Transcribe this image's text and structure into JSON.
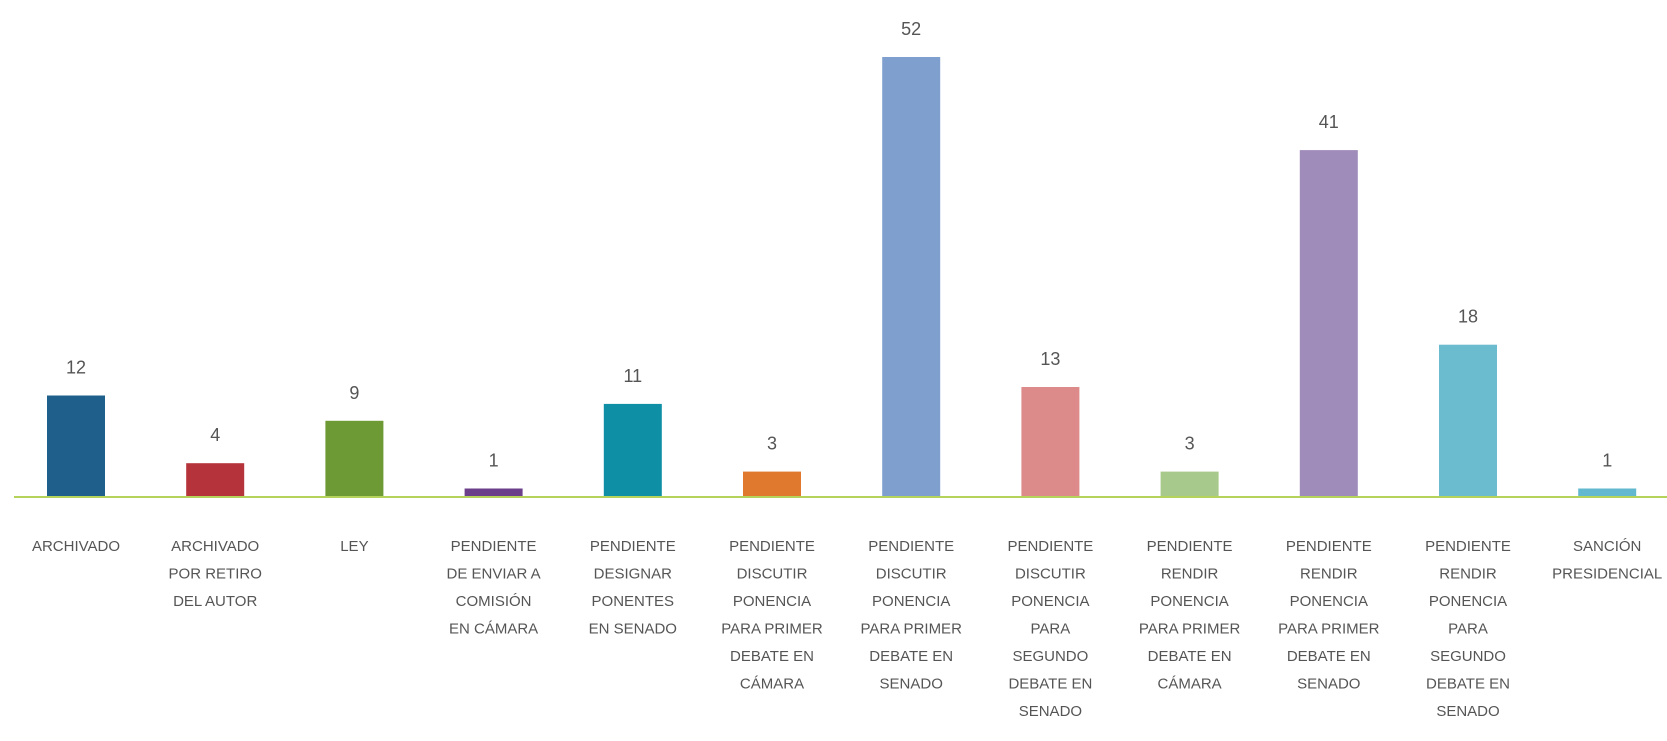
{
  "chart_data": {
    "type": "bar",
    "categories": [
      [
        "ARCHIVADO"
      ],
      [
        "ARCHIVADO",
        "POR RETIRO",
        "DEL AUTOR"
      ],
      [
        "LEY"
      ],
      [
        "PENDIENTE",
        "DE ENVIAR A",
        "COMISIÓN",
        "EN CÁMARA"
      ],
      [
        "PENDIENTE",
        "DESIGNAR",
        "PONENTES",
        "EN SENADO"
      ],
      [
        "PENDIENTE",
        "DISCUTIR",
        "PONENCIA",
        "PARA PRIMER",
        "DEBATE EN",
        "CÁMARA"
      ],
      [
        "PENDIENTE",
        "DISCUTIR",
        "PONENCIA",
        "PARA PRIMER",
        "DEBATE EN",
        "SENADO"
      ],
      [
        "PENDIENTE",
        "DISCUTIR",
        "PONENCIA",
        "PARA",
        "SEGUNDO",
        "DEBATE EN",
        "SENADO"
      ],
      [
        "PENDIENTE",
        "RENDIR",
        "PONENCIA",
        "PARA PRIMER",
        "DEBATE EN",
        "CÁMARA"
      ],
      [
        "PENDIENTE",
        "RENDIR",
        "PONENCIA",
        "PARA PRIMER",
        "DEBATE EN",
        "SENADO"
      ],
      [
        "PENDIENTE",
        "RENDIR",
        "PONENCIA",
        "PARA",
        "SEGUNDO",
        "DEBATE EN",
        "SENADO"
      ],
      [
        "SANCIÓN",
        "PRESIDENCIAL"
      ]
    ],
    "values": [
      12,
      4,
      9,
      1,
      11,
      3,
      52,
      13,
      3,
      41,
      18,
      1
    ],
    "colors": [
      "#1f5f8b",
      "#b5333a",
      "#6e9a36",
      "#6b3f8a",
      "#0f8fa6",
      "#e0782d",
      "#7f9fcf",
      "#dc8a8a",
      "#a8c98c",
      "#a08cba",
      "#6cbcd0",
      "#62b9cf"
    ],
    "baseline_color": "#b5d35a",
    "ylim": [
      0,
      52
    ],
    "grid": false,
    "legend": "none",
    "title": "",
    "xlabel": "",
    "ylabel": ""
  }
}
